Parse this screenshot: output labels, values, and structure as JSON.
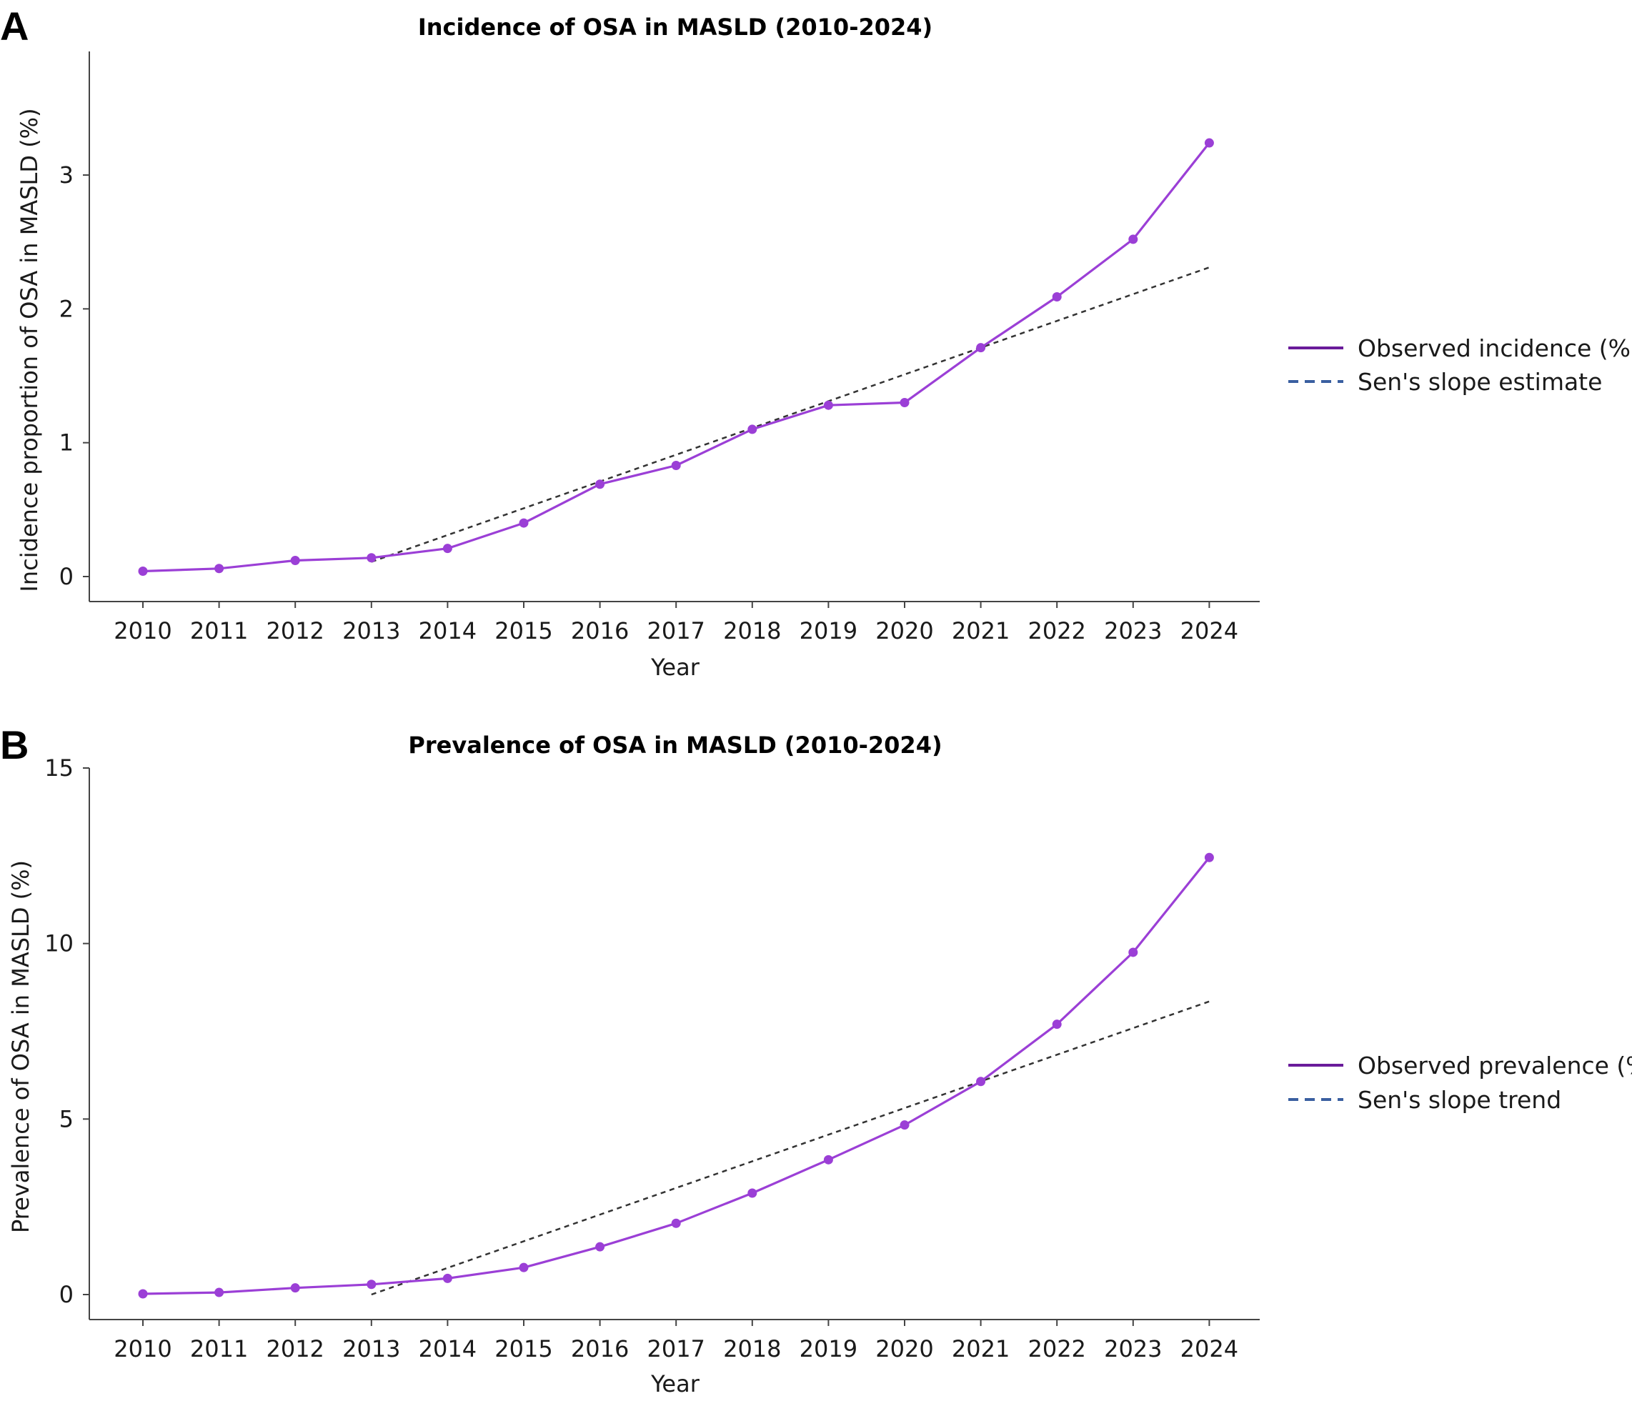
{
  "chart_data": [
    {
      "panel": "A",
      "type": "line",
      "title": "Incidence of OSA in MASLD (2010-2024)",
      "xlabel": "Year",
      "ylabel": "Incidence proportion of OSA in MASLD (%)",
      "x": [
        "2010",
        "2011",
        "2012",
        "2013",
        "2014",
        "2015",
        "2016",
        "2017",
        "2018",
        "2019",
        "2020",
        "2021",
        "2022",
        "2023",
        "2024"
      ],
      "yticks": [
        0,
        1,
        2,
        3
      ],
      "ylim": [
        -0.18,
        3.9
      ],
      "series": [
        {
          "name": "Observed incidence (%)",
          "style": "solid-markers",
          "color": "#9b3fd6",
          "values": [
            0.04,
            0.06,
            0.12,
            0.14,
            0.21,
            0.4,
            0.69,
            0.83,
            1.1,
            1.28,
            1.3,
            1.71,
            2.09,
            2.52,
            3.24
          ]
        },
        {
          "name": "Sen's slope estimate",
          "style": "dashed",
          "color": "#333333",
          "x": [
            "2013",
            "2024"
          ],
          "values": [
            0.11,
            2.31
          ]
        }
      ],
      "legend": {
        "placement": "right",
        "entries": [
          {
            "label": "Observed incidence (%)",
            "line": "solid",
            "color": "#6a1b9a"
          },
          {
            "label": "Sen's slope estimate",
            "line": "dashed",
            "color": "#3a5fa0"
          }
        ]
      },
      "grid": false
    },
    {
      "panel": "B",
      "type": "line",
      "title": "Prevalence of OSA in MASLD (2010-2024)",
      "xlabel": "Year",
      "ylabel": "Prevalence of OSA in MASLD (%)",
      "x": [
        "2010",
        "2011",
        "2012",
        "2013",
        "2014",
        "2015",
        "2016",
        "2017",
        "2018",
        "2019",
        "2020",
        "2021",
        "2022",
        "2023",
        "2024"
      ],
      "yticks": [
        0,
        5,
        10,
        15
      ],
      "ylim": [
        -0.7,
        15.0
      ],
      "series": [
        {
          "name": "Observed prevalence (%)",
          "style": "solid-markers",
          "color": "#9b3fd6",
          "values": [
            0.02,
            0.06,
            0.19,
            0.29,
            0.46,
            0.77,
            1.36,
            2.03,
            2.89,
            3.84,
            4.83,
            6.07,
            7.7,
            9.75,
            12.45
          ]
        },
        {
          "name": "Sen's slope trend",
          "style": "dashed",
          "color": "#333333",
          "x": [
            "2013",
            "2024"
          ],
          "values": [
            0.0,
            8.35
          ]
        }
      ],
      "legend": {
        "placement": "right",
        "entries": [
          {
            "label": "Observed prevalence (%)",
            "line": "solid",
            "color": "#6a1b9a"
          },
          {
            "label": "Sen's slope trend",
            "line": "dashed",
            "color": "#3a5fa0"
          }
        ]
      },
      "grid": false
    }
  ]
}
